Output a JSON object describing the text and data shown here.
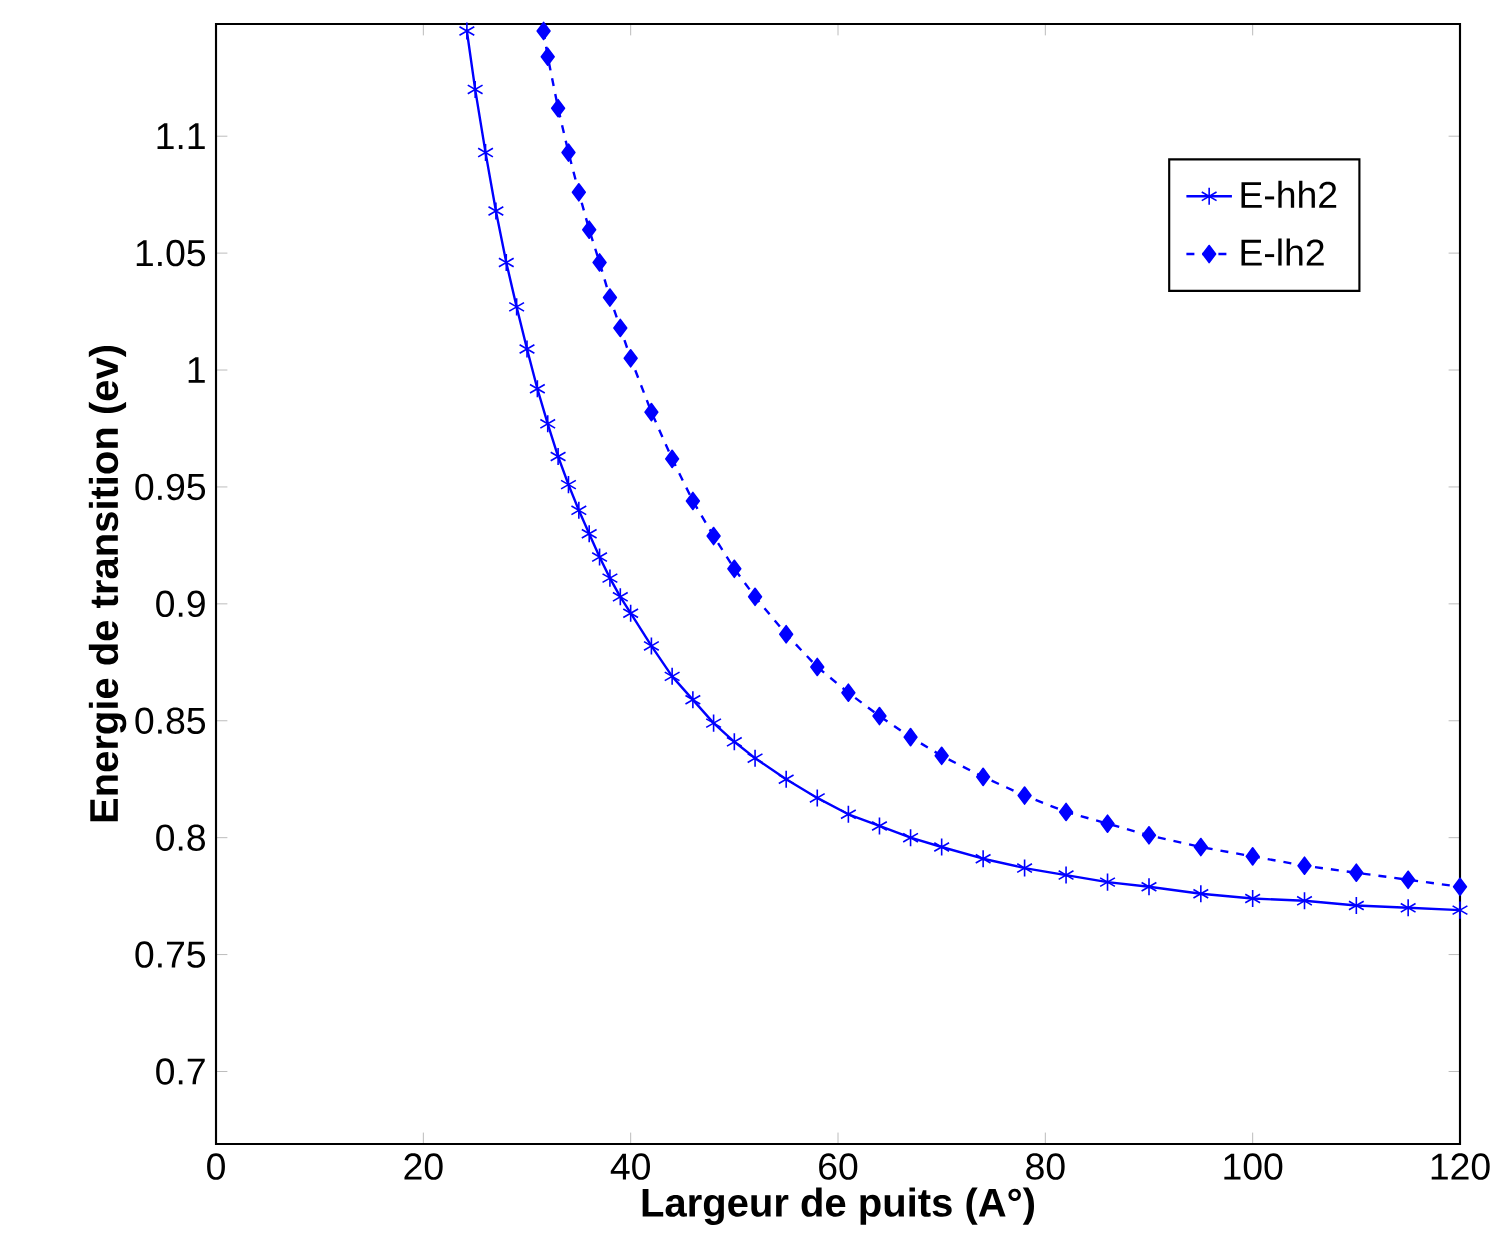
{
  "chart_data": {
    "type": "line",
    "xlabel": "Largeur de puits (A°)",
    "ylabel": "Energie de transition (ev)",
    "xlim": [
      0,
      120
    ],
    "ylim": [
      0.669,
      1.148
    ],
    "xticks": [
      0,
      20,
      40,
      60,
      80,
      100,
      120
    ],
    "yticks": [
      0.7,
      0.75,
      0.8,
      0.85,
      0.9,
      0.95,
      1,
      1.05,
      1.1
    ],
    "grid": false,
    "legend": "top right",
    "series": [
      {
        "name": "E-hh2",
        "color": "#0000ff",
        "marker": "cross",
        "line_style": "solid",
        "x": [
          24.2,
          25,
          26,
          27,
          28,
          29,
          30,
          31,
          32,
          33,
          34,
          35,
          36,
          37,
          38,
          39,
          40,
          42,
          44,
          46,
          48,
          50,
          52,
          55,
          58,
          61,
          64,
          67,
          70,
          74,
          78,
          82,
          86,
          90,
          95,
          100,
          105,
          110,
          115,
          120
        ],
        "values": [
          1.145,
          1.12,
          1.093,
          1.068,
          1.046,
          1.027,
          1.009,
          0.992,
          0.977,
          0.963,
          0.951,
          0.94,
          0.93,
          0.92,
          0.911,
          0.903,
          0.896,
          0.882,
          0.869,
          0.859,
          0.849,
          0.841,
          0.834,
          0.825,
          0.817,
          0.81,
          0.805,
          0.8,
          0.796,
          0.791,
          0.787,
          0.784,
          0.781,
          0.779,
          0.776,
          0.774,
          0.773,
          0.771,
          0.77,
          0.769
        ]
      },
      {
        "name": "E-lh2",
        "color": "#0000ff",
        "marker": "diamond",
        "line_style": "dashed",
        "x": [
          31.6,
          32,
          33,
          34,
          35,
          36,
          37,
          38,
          39,
          40,
          42,
          44,
          46,
          48,
          50,
          52,
          55,
          58,
          61,
          64,
          67,
          70,
          74,
          78,
          82,
          86,
          90,
          95,
          100,
          105,
          110,
          115,
          120
        ],
        "values": [
          1.145,
          1.134,
          1.112,
          1.093,
          1.076,
          1.06,
          1.046,
          1.031,
          1.018,
          1.005,
          0.982,
          0.962,
          0.944,
          0.929,
          0.915,
          0.903,
          0.887,
          0.873,
          0.862,
          0.852,
          0.843,
          0.835,
          0.826,
          0.818,
          0.811,
          0.806,
          0.801,
          0.796,
          0.792,
          0.788,
          0.785,
          0.782,
          0.779
        ]
      }
    ]
  }
}
